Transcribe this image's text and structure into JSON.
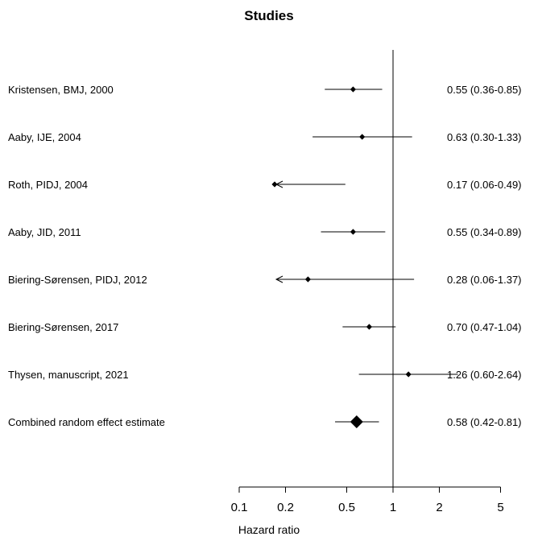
{
  "chart_data": {
    "type": "forest",
    "title": "Studies",
    "xlabel": "Hazard ratio",
    "x_scale": "log",
    "xlim": [
      0.08,
      5
    ],
    "reference_line": 1,
    "x_ticks": [
      0.1,
      0.2,
      0.5,
      1,
      2,
      5
    ],
    "x_tick_labels": [
      "0.1",
      "0.2",
      "0.5",
      "1",
      "2",
      "5"
    ],
    "studies": [
      {
        "label": "Kristensen, BMJ, 2000",
        "hr": 0.55,
        "lower": 0.36,
        "upper": 0.85,
        "estimate_text": "0.55 (0.36-0.85)"
      },
      {
        "label": "Aaby, IJE, 2004",
        "hr": 0.63,
        "lower": 0.3,
        "upper": 1.33,
        "estimate_text": "0.63 (0.30-1.33)"
      },
      {
        "label": "Roth, PIDJ, 2004",
        "hr": 0.17,
        "lower": 0.06,
        "upper": 0.49,
        "estimate_text": "0.17 (0.06-0.49)",
        "clipped_lower": true
      },
      {
        "label": "Aaby, JID, 2011",
        "hr": 0.55,
        "lower": 0.34,
        "upper": 0.89,
        "estimate_text": "0.55 (0.34-0.89)"
      },
      {
        "label": "Biering-Sørensen, PIDJ, 2012",
        "hr": 0.28,
        "lower": 0.06,
        "upper": 1.37,
        "estimate_text": "0.28 (0.06-1.37)",
        "clipped_lower": true
      },
      {
        "label": "Biering-Sørensen, 2017",
        "hr": 0.7,
        "lower": 0.47,
        "upper": 1.04,
        "estimate_text": "0.70 (0.47-1.04)"
      },
      {
        "label": "Thysen, manuscript, 2021",
        "hr": 1.26,
        "lower": 0.6,
        "upper": 2.64,
        "estimate_text": "1.26 (0.60-2.64)"
      }
    ],
    "combined": {
      "label": "Combined random effect estimate",
      "hr": 0.58,
      "lower": 0.42,
      "upper": 0.81,
      "estimate_text": "0.58 (0.42-0.81)"
    }
  }
}
